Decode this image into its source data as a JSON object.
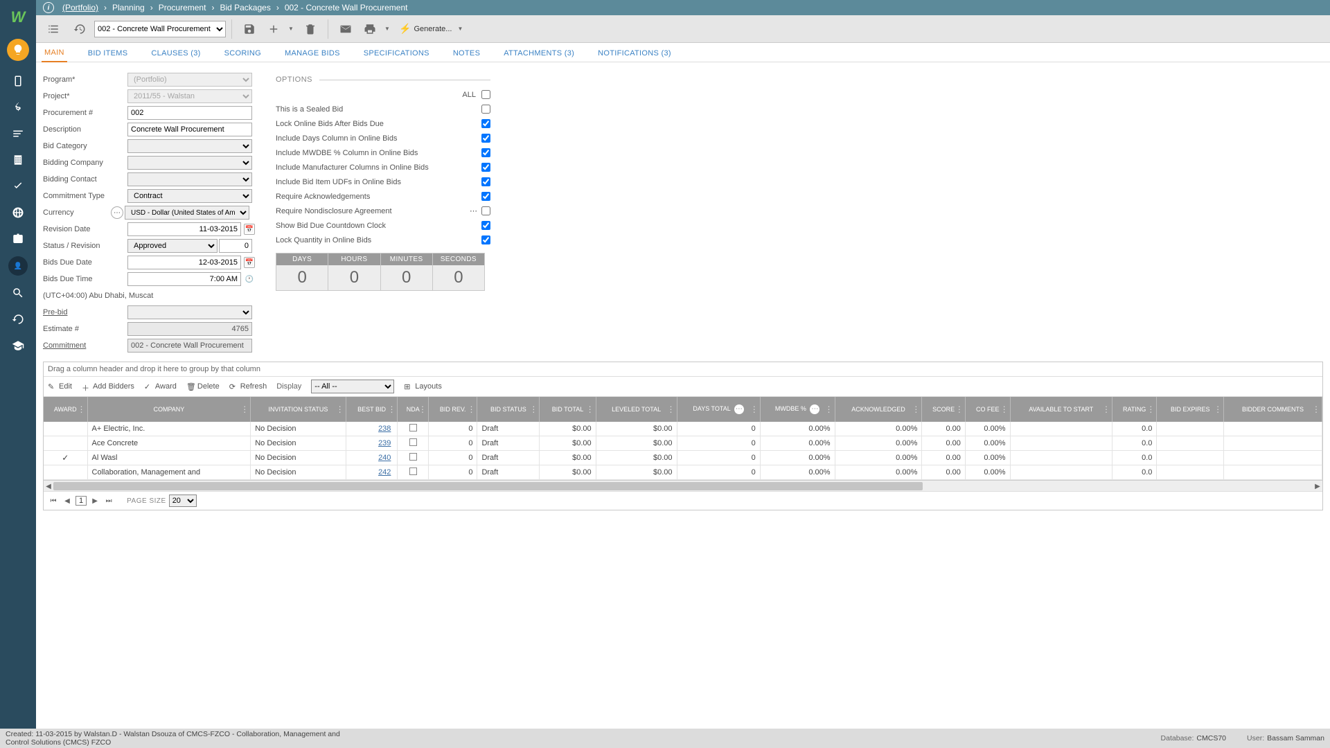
{
  "breadcrumb": {
    "root": "(Portfolio)",
    "items": [
      "Planning",
      "Procurement",
      "Bid Packages",
      "002 - Concrete Wall Procurement"
    ]
  },
  "toolbar": {
    "record_selector": "002 -  Concrete Wall Procurement",
    "generate_label": "Generate..."
  },
  "tabs": [
    {
      "label": "MAIN",
      "active": true
    },
    {
      "label": "BID ITEMS"
    },
    {
      "label": "CLAUSES (3)"
    },
    {
      "label": "SCORING"
    },
    {
      "label": "MANAGE BIDS"
    },
    {
      "label": "SPECIFICATIONS"
    },
    {
      "label": "NOTES"
    },
    {
      "label": "ATTACHMENTS (3)"
    },
    {
      "label": "NOTIFICATIONS (3)"
    }
  ],
  "form": {
    "program_lbl": "Program*",
    "program_val": "(Portfolio)",
    "project_lbl": "Project*",
    "project_val": "2011/55 - Walstan",
    "procnum_lbl": "Procurement #",
    "procnum_val": "002",
    "desc_lbl": "Description",
    "desc_val": "Concrete Wall Procurement",
    "bidcat_lbl": "Bid Category",
    "bidcat_val": "",
    "bidco_lbl": "Bidding Company",
    "bidco_val": "",
    "bidcontact_lbl": "Bidding Contact",
    "bidcontact_val": "",
    "committype_lbl": "Commitment Type",
    "committype_val": "Contract",
    "currency_lbl": "Currency",
    "currency_val": "USD - Dollar (United States of America)",
    "revdate_lbl": "Revision Date",
    "revdate_val": "11-03-2015",
    "statrev_lbl": "Status / Revision",
    "statrev_val": "Approved",
    "statrev_num": "0",
    "bidsdue_lbl": "Bids Due Date",
    "bidsdue_val": "12-03-2015",
    "bidstime_lbl": "Bids Due Time",
    "bidstime_val": "7:00 AM",
    "tz_lbl": "(UTC+04:00) Abu Dhabi, Muscat",
    "prebid_lbl": "Pre-bid",
    "prebid_val": "",
    "estimate_lbl": "Estimate #",
    "estimate_val": "4765",
    "commitment_lbl": "Commitment",
    "commitment_val": "002 - Concrete Wall Procurement"
  },
  "options": {
    "header": "OPTIONS",
    "all_lbl": "ALL",
    "rows": [
      {
        "label": "This is a Sealed Bid",
        "checked": false
      },
      {
        "label": "Lock Online Bids After Bids Due",
        "checked": true
      },
      {
        "label": "Include Days Column in Online Bids",
        "checked": true
      },
      {
        "label": "Include MWDBE % Column in Online Bids",
        "checked": true
      },
      {
        "label": "Include Manufacturer Columns in Online Bids",
        "checked": true
      },
      {
        "label": "Include Bid Item UDFs in Online Bids",
        "checked": true
      },
      {
        "label": "Require Acknowledgements",
        "checked": true
      },
      {
        "label": "Require Nondisclosure Agreement",
        "checked": false,
        "ellipsis": true
      },
      {
        "label": "Show Bid Due Countdown Clock",
        "checked": true
      },
      {
        "label": "Lock Quantity in Online Bids",
        "checked": true
      }
    ]
  },
  "countdown": {
    "headers": [
      "DAYS",
      "HOURS",
      "MINUTES",
      "SECONDS"
    ],
    "values": [
      "0",
      "0",
      "0",
      "0"
    ]
  },
  "grid": {
    "group_hint": "Drag a column header and drop it here to group by that column",
    "toolbar": {
      "edit": "Edit",
      "add": "Add Bidders",
      "award": "Award",
      "delete": "Delete",
      "refresh": "Refresh",
      "display": "Display",
      "filter": "-- All --",
      "layouts": "Layouts"
    },
    "columns": [
      "AWARD",
      "COMPANY",
      "INVITATION STATUS",
      "BEST BID",
      "NDA",
      "BID REV.",
      "BID STATUS",
      "BID TOTAL",
      "LEVELED TOTAL",
      "DAYS TOTAL",
      "MWDBE %",
      "ACKNOWLEDGED",
      "SCORE",
      "CO FEE",
      "AVAILABLE TO START",
      "RATING",
      "BID EXPIRES",
      "BIDDER COMMENTS"
    ],
    "rows": [
      {
        "award": "",
        "company": "A+ Electric, Inc.",
        "inv": "No Decision",
        "best": "238",
        "nda": false,
        "rev": "0",
        "status": "Draft",
        "total": "$0.00",
        "leveled": "$0.00",
        "days": "0",
        "mwdbe": "0.00%",
        "ack": "0.00%",
        "score": "0.00",
        "cofee": "0.00%",
        "avail": "",
        "rating": "0.0",
        "expires": "",
        "comments": ""
      },
      {
        "award": "",
        "company": "Ace Concrete",
        "inv": "No Decision",
        "best": "239",
        "nda": false,
        "rev": "0",
        "status": "Draft",
        "total": "$0.00",
        "leveled": "$0.00",
        "days": "0",
        "mwdbe": "0.00%",
        "ack": "0.00%",
        "score": "0.00",
        "cofee": "0.00%",
        "avail": "",
        "rating": "0.0",
        "expires": "",
        "comments": ""
      },
      {
        "award": "✓",
        "company": "Al Wasl",
        "inv": "No Decision",
        "best": "240",
        "nda": false,
        "rev": "0",
        "status": "Draft",
        "total": "$0.00",
        "leveled": "$0.00",
        "days": "0",
        "mwdbe": "0.00%",
        "ack": "0.00%",
        "score": "0.00",
        "cofee": "0.00%",
        "avail": "",
        "rating": "0.0",
        "expires": "",
        "comments": ""
      },
      {
        "award": "",
        "company": "Collaboration, Management and",
        "inv": "No Decision",
        "best": "242",
        "nda": false,
        "rev": "0",
        "status": "Draft",
        "total": "$0.00",
        "leveled": "$0.00",
        "days": "0",
        "mwdbe": "0.00%",
        "ack": "0.00%",
        "score": "0.00",
        "cofee": "0.00%",
        "avail": "",
        "rating": "0.0",
        "expires": "",
        "comments": ""
      }
    ],
    "scrollbar_thumb_pct": 68
  },
  "pager": {
    "page": "1",
    "size_lbl": "PAGE SIZE",
    "size": "20"
  },
  "footer": {
    "created": "Created:  11-03-2015 by Walstan.D - Walstan Dsouza of CMCS-FZCO - Collaboration, Management and Control Solutions (CMCS) FZCO",
    "db_lbl": "Database:",
    "db": "CMCS70",
    "user_lbl": "User:",
    "user": "Bassam Samman"
  }
}
